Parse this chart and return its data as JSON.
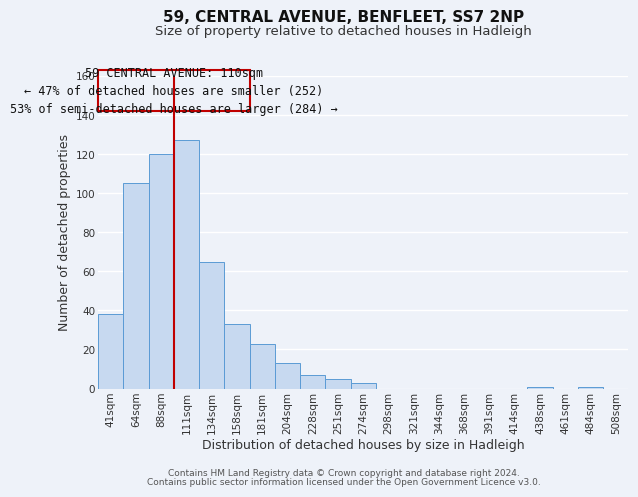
{
  "title": "59, CENTRAL AVENUE, BENFLEET, SS7 2NP",
  "subtitle": "Size of property relative to detached houses in Hadleigh",
  "xlabel": "Distribution of detached houses by size in Hadleigh",
  "ylabel": "Number of detached properties",
  "bin_labels": [
    "41sqm",
    "64sqm",
    "88sqm",
    "111sqm",
    "134sqm",
    "158sqm",
    "181sqm",
    "204sqm",
    "228sqm",
    "251sqm",
    "274sqm",
    "298sqm",
    "321sqm",
    "344sqm",
    "368sqm",
    "391sqm",
    "414sqm",
    "438sqm",
    "461sqm",
    "484sqm",
    "508sqm"
  ],
  "bar_values": [
    38,
    105,
    120,
    127,
    65,
    33,
    23,
    13,
    7,
    5,
    3,
    0,
    0,
    0,
    0,
    0,
    0,
    1,
    0,
    1,
    0
  ],
  "bar_color": "#c7d9f0",
  "bar_edge_color": "#5b9bd5",
  "ylim": [
    0,
    160
  ],
  "yticks": [
    0,
    20,
    40,
    60,
    80,
    100,
    120,
    140,
    160
  ],
  "property_line_bar_index": 2,
  "property_line_color": "#c00000",
  "annotation_line1": "59 CENTRAL AVENUE: 110sqm",
  "annotation_line2": "← 47% of detached houses are smaller (252)",
  "annotation_line3": "53% of semi-detached houses are larger (284) →",
  "footer_line1": "Contains HM Land Registry data © Crown copyright and database right 2024.",
  "footer_line2": "Contains public sector information licensed under the Open Government Licence v3.0.",
  "background_color": "#eef2f9",
  "grid_color": "#ffffff",
  "title_fontsize": 11,
  "subtitle_fontsize": 9.5,
  "axis_label_fontsize": 9,
  "tick_fontsize": 7.5,
  "footer_fontsize": 6.5,
  "annotation_fontsize": 8.5
}
